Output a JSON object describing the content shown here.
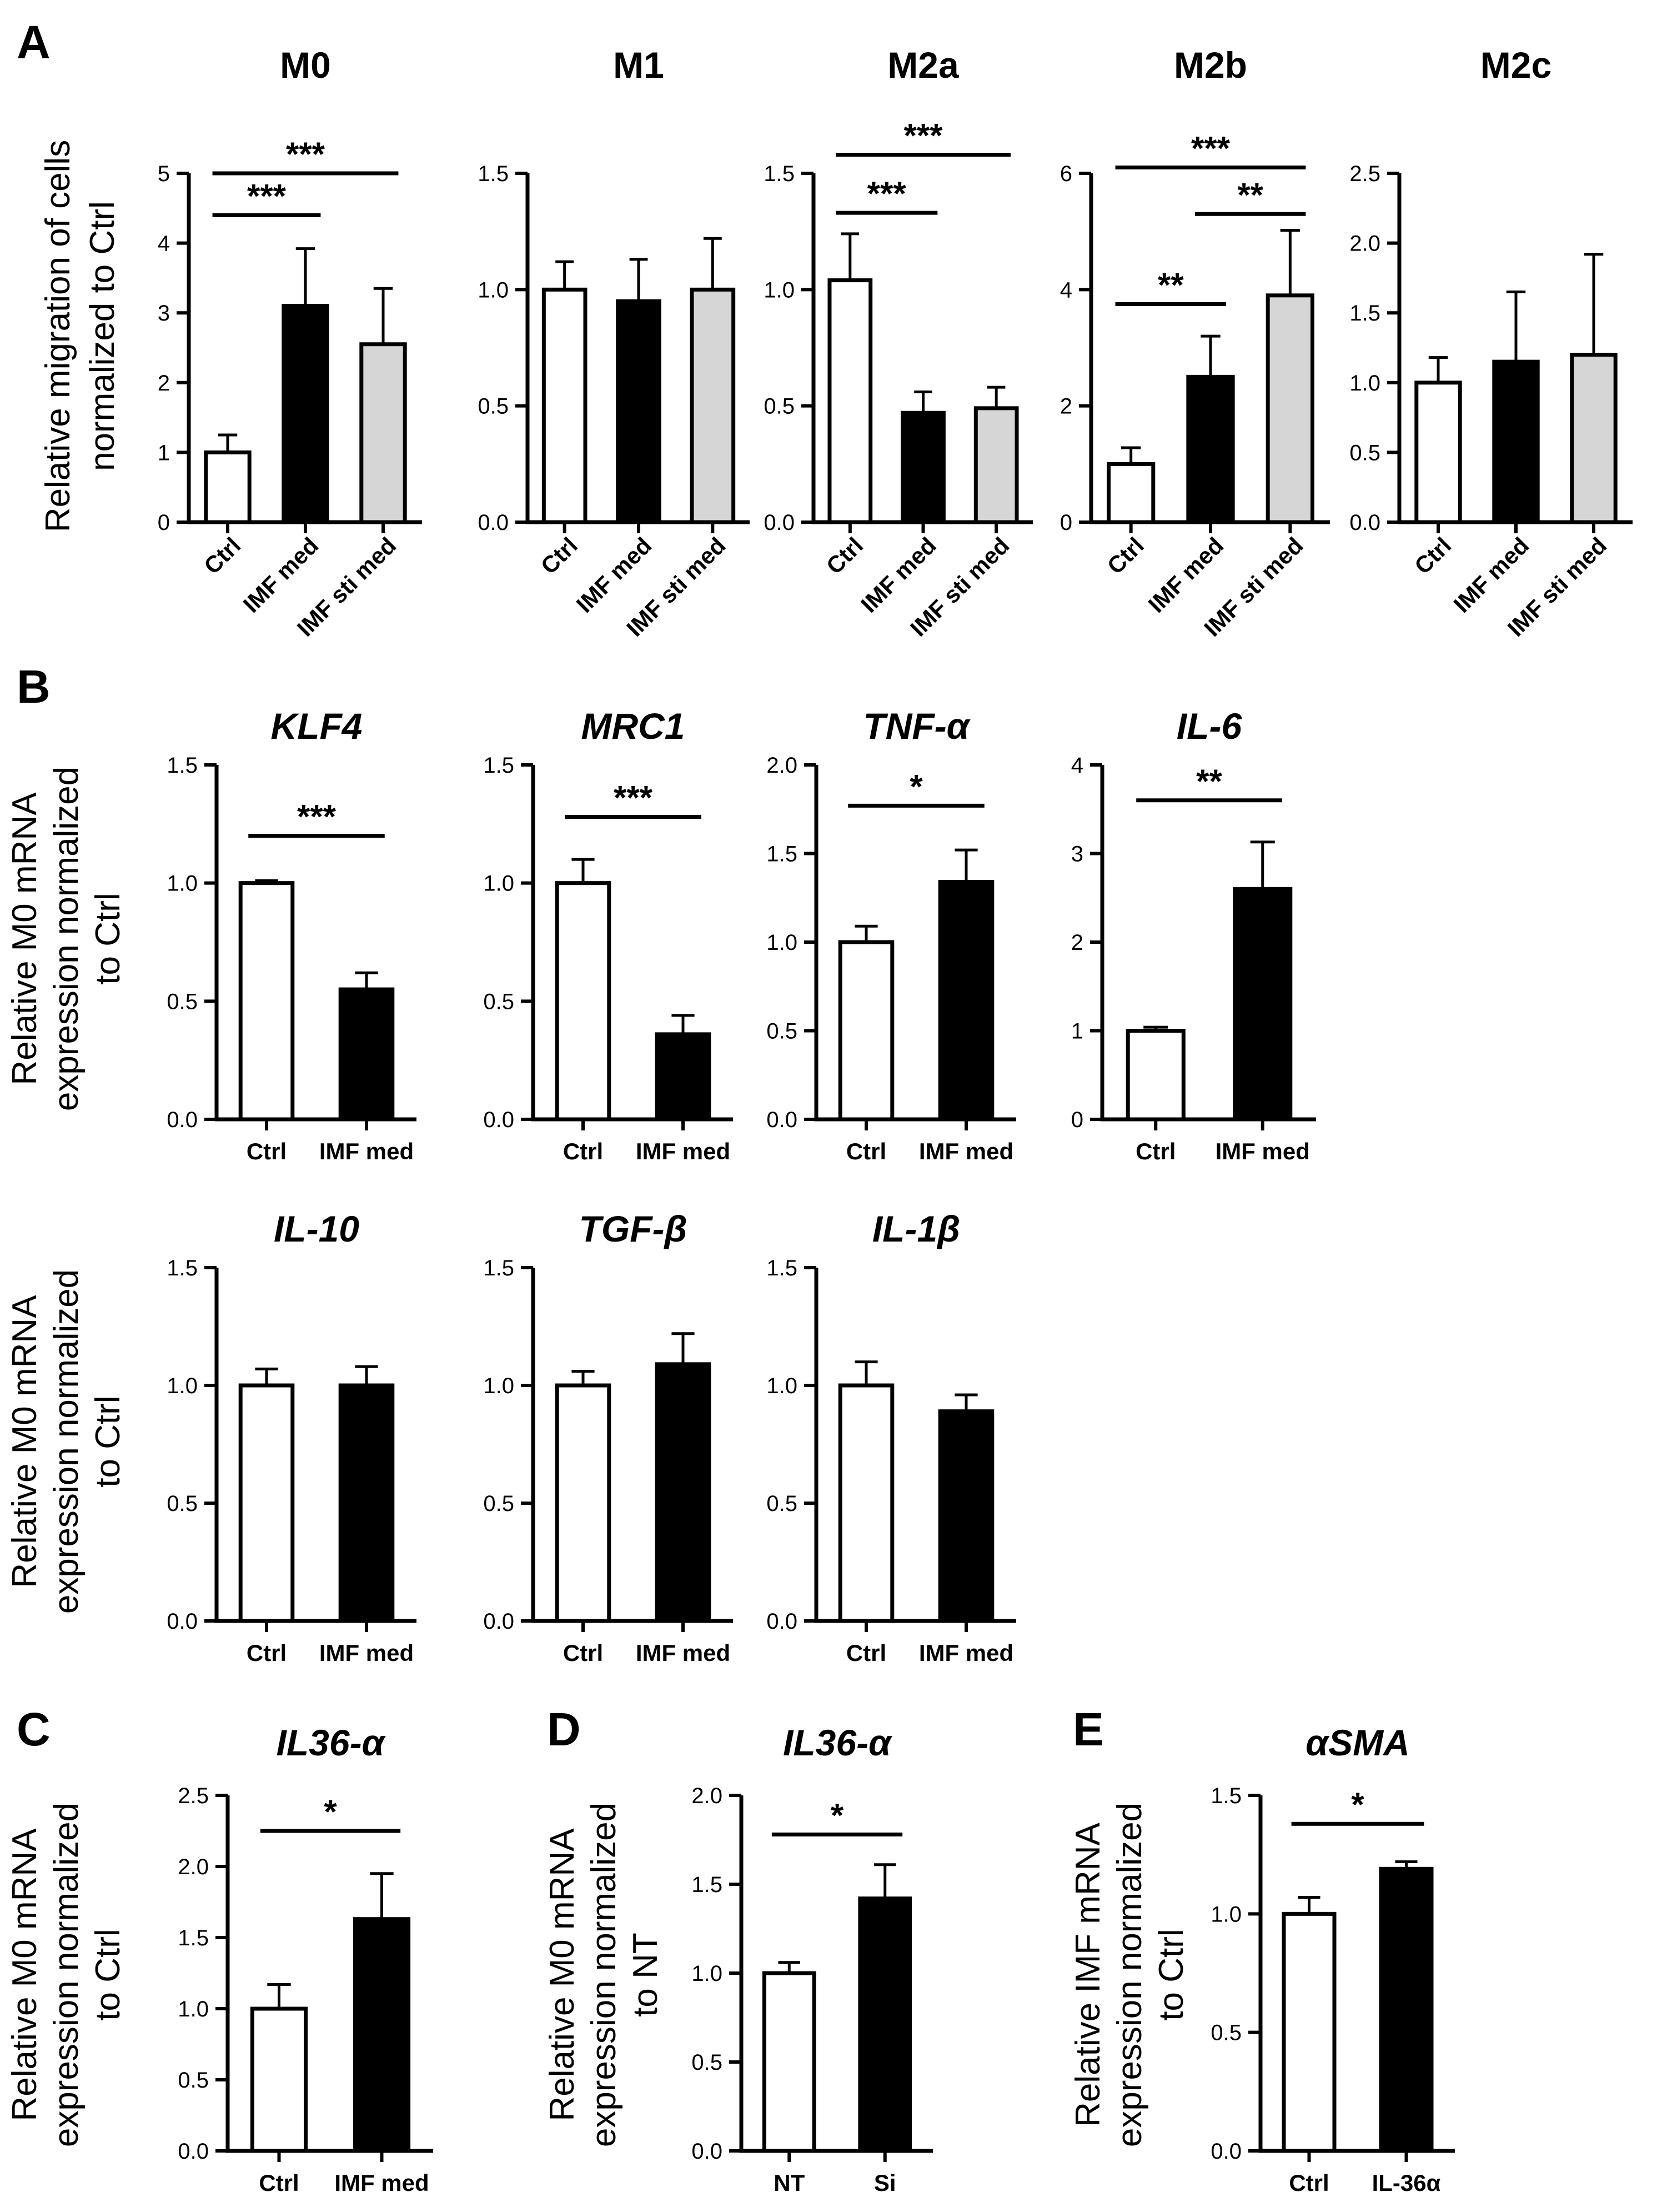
{
  "panel_labels": [
    "A",
    "B",
    "C",
    "D",
    "E"
  ],
  "ylabels": {
    "A": [
      "Relative migration of cells",
      "normalized to Ctrl"
    ],
    "B1": [
      "Relative M0 mRNA",
      "expression normalized",
      "to Ctrl"
    ],
    "B2": [
      "Relative M0 mRNA",
      "expression normalized",
      "to Ctrl"
    ],
    "C": [
      "Relative M0 mRNA",
      "expression normalized",
      "to Ctrl"
    ],
    "D": [
      "Relative M0 mRNA",
      "expression normalized",
      "to NT"
    ],
    "E": [
      "Relative IMF mRNA",
      "expression normalized",
      "to Ctrl"
    ]
  },
  "colors": {
    "ctrl": "#ffffff",
    "imf": "#000000",
    "sti": "#d6d6d6",
    "edge": "#000000"
  },
  "chart_data": [
    {
      "id": "A-M0",
      "type": "bar",
      "title": "M0",
      "italic": false,
      "categories": [
        "Ctrl",
        "IMF med",
        "IMF sti med"
      ],
      "values": [
        1.0,
        3.1,
        2.55
      ],
      "errors": [
        0.25,
        0.82,
        0.8
      ],
      "ylim": [
        0,
        5
      ],
      "yticks": [
        "0",
        "1",
        "2",
        "3",
        "4",
        "5"
      ],
      "rotated": true,
      "sig": [
        {
          "from": 0,
          "to": 1,
          "y": 4.4,
          "label": "***"
        },
        {
          "from": 0,
          "to": 2,
          "y": 5.0,
          "label": "***"
        }
      ]
    },
    {
      "id": "A-M1",
      "type": "bar",
      "title": "M1",
      "italic": false,
      "categories": [
        "Ctrl",
        "IMF med",
        "IMF sti med"
      ],
      "values": [
        1.0,
        0.95,
        1.0
      ],
      "errors": [
        0.12,
        0.18,
        0.22
      ],
      "ylim": [
        0,
        1.5
      ],
      "yticks": [
        "0.0",
        "0.5",
        "1.0",
        "1.5"
      ],
      "rotated": true,
      "sig": []
    },
    {
      "id": "A-M2a",
      "type": "bar",
      "title": "M2a",
      "italic": false,
      "categories": [
        "Ctrl",
        "IMF med",
        "IMF sti med"
      ],
      "values": [
        1.04,
        0.47,
        0.49
      ],
      "errors": [
        0.2,
        0.09,
        0.09
      ],
      "ylim": [
        0,
        1.5
      ],
      "yticks": [
        "0.0",
        "0.5",
        "1.0",
        "1.5"
      ],
      "rotated": true,
      "sig": [
        {
          "from": 0,
          "to": 1,
          "y": 1.33,
          "label": "***"
        },
        {
          "from": 0,
          "to": 2,
          "y": 1.58,
          "label": "***"
        }
      ]
    },
    {
      "id": "A-M2b",
      "type": "bar",
      "title": "M2b",
      "italic": false,
      "categories": [
        "Ctrl",
        "IMF med",
        "IMF sti med"
      ],
      "values": [
        1.0,
        2.5,
        3.9
      ],
      "errors": [
        0.28,
        0.7,
        1.12
      ],
      "ylim": [
        0,
        6
      ],
      "yticks": [
        "0",
        "2",
        "4",
        "6"
      ],
      "rotated": true,
      "sig": [
        {
          "from": 0,
          "to": 1,
          "y": 3.75,
          "label": "**"
        },
        {
          "from": 1,
          "to": 2,
          "y": 5.3,
          "label": "**"
        },
        {
          "from": 0,
          "to": 2,
          "y": 6.1,
          "label": "***"
        }
      ]
    },
    {
      "id": "A-M2c",
      "type": "bar",
      "title": "M2c",
      "italic": false,
      "categories": [
        "Ctrl",
        "IMF med",
        "IMF sti med"
      ],
      "values": [
        1.0,
        1.15,
        1.2
      ],
      "errors": [
        0.18,
        0.5,
        0.72
      ],
      "ylim": [
        0,
        2.5
      ],
      "yticks": [
        "0.0",
        "0.5",
        "1.0",
        "1.5",
        "2.0",
        "2.5"
      ],
      "rotated": true,
      "sig": []
    },
    {
      "id": "B-KLF4",
      "type": "bar",
      "title": "KLF4",
      "italic": true,
      "categories": [
        "Ctrl",
        "IMF med"
      ],
      "values": [
        1.0,
        0.55
      ],
      "errors": [
        0.01,
        0.07
      ],
      "ylim": [
        0,
        1.5
      ],
      "yticks": [
        "0.0",
        "0.5",
        "1.0",
        "1.5"
      ],
      "rotated": false,
      "sig": [
        {
          "from": 0,
          "to": 1,
          "y": 1.2,
          "label": "***"
        }
      ]
    },
    {
      "id": "B-MRC1",
      "type": "bar",
      "title": "MRC1",
      "italic": true,
      "categories": [
        "Ctrl",
        "IMF med"
      ],
      "values": [
        1.0,
        0.36
      ],
      "errors": [
        0.1,
        0.08
      ],
      "ylim": [
        0,
        1.5
      ],
      "yticks": [
        "0.0",
        "0.5",
        "1.0",
        "1.5"
      ],
      "rotated": false,
      "sig": [
        {
          "from": 0,
          "to": 1,
          "y": 1.28,
          "label": "***"
        }
      ]
    },
    {
      "id": "B-TNF",
      "type": "bar",
      "title": "TNF-α",
      "italic": true,
      "categories": [
        "Ctrl",
        "IMF med"
      ],
      "values": [
        1.0,
        1.34
      ],
      "errors": [
        0.09,
        0.18
      ],
      "ylim": [
        0,
        2.0
      ],
      "yticks": [
        "0.0",
        "0.5",
        "1.0",
        "1.5",
        "2.0"
      ],
      "rotated": false,
      "sig": [
        {
          "from": 0,
          "to": 1,
          "y": 1.77,
          "label": "*"
        }
      ]
    },
    {
      "id": "B-IL6",
      "type": "bar",
      "title": "IL-6",
      "italic": true,
      "categories": [
        "Ctrl",
        "IMF med"
      ],
      "values": [
        1.0,
        2.6
      ],
      "errors": [
        0.04,
        0.53
      ],
      "ylim": [
        0,
        4
      ],
      "yticks": [
        "0",
        "1",
        "2",
        "3",
        "4"
      ],
      "rotated": false,
      "sig": [
        {
          "from": 0,
          "to": 1,
          "y": 3.6,
          "label": "**"
        }
      ]
    },
    {
      "id": "B-IL10",
      "type": "bar",
      "title": "IL-10",
      "italic": true,
      "categories": [
        "Ctrl",
        "IMF med"
      ],
      "values": [
        1.0,
        1.0
      ],
      "errors": [
        0.07,
        0.08
      ],
      "ylim": [
        0,
        1.5
      ],
      "yticks": [
        "0.0",
        "0.5",
        "1.0",
        "1.5"
      ],
      "rotated": false,
      "sig": []
    },
    {
      "id": "B-TGFb",
      "type": "bar",
      "title": "TGF-β",
      "italic": true,
      "categories": [
        "Ctrl",
        "IMF med"
      ],
      "values": [
        1.0,
        1.09
      ],
      "errors": [
        0.06,
        0.13
      ],
      "ylim": [
        0,
        1.5
      ],
      "yticks": [
        "0.0",
        "0.5",
        "1.0",
        "1.5"
      ],
      "rotated": false,
      "sig": []
    },
    {
      "id": "B-IL1b",
      "type": "bar",
      "title": "IL-1β",
      "italic": true,
      "categories": [
        "Ctrl",
        "IMF med"
      ],
      "values": [
        1.0,
        0.89
      ],
      "errors": [
        0.1,
        0.07
      ],
      "ylim": [
        0,
        1.5
      ],
      "yticks": [
        "0.0",
        "0.5",
        "1.0",
        "1.5"
      ],
      "rotated": false,
      "sig": []
    },
    {
      "id": "C-IL36a",
      "type": "bar",
      "title": "IL36-α",
      "italic": true,
      "categories": [
        "Ctrl",
        "IMF med"
      ],
      "values": [
        1.0,
        1.63
      ],
      "errors": [
        0.17,
        0.32
      ],
      "ylim": [
        0,
        2.5
      ],
      "yticks": [
        "0.0",
        "0.5",
        "1.0",
        "1.5",
        "2.0",
        "2.5"
      ],
      "rotated": false,
      "sig": [
        {
          "from": 0,
          "to": 1,
          "y": 2.25,
          "label": "*"
        }
      ]
    },
    {
      "id": "D-IL36a",
      "type": "bar",
      "title": "IL36-α",
      "italic": true,
      "categories": [
        "NT",
        "Si"
      ],
      "values": [
        1.0,
        1.42
      ],
      "errors": [
        0.06,
        0.19
      ],
      "ylim": [
        0,
        2.0
      ],
      "yticks": [
        "0.0",
        "0.5",
        "1.0",
        "1.5",
        "2.0"
      ],
      "rotated": false,
      "sig": [
        {
          "from": 0,
          "to": 1,
          "y": 1.78,
          "label": "*"
        }
      ]
    },
    {
      "id": "E-aSMA",
      "type": "bar",
      "title": "αSMA",
      "italic": true,
      "categories": [
        "Ctrl",
        "IL-36α"
      ],
      "values": [
        1.0,
        1.19
      ],
      "errors": [
        0.07,
        0.03
      ],
      "ylim": [
        0,
        1.5
      ],
      "yticks": [
        "0.0",
        "0.5",
        "1.0",
        "1.5"
      ],
      "rotated": false,
      "sig": [
        {
          "from": 0,
          "to": 1,
          "y": 1.38,
          "label": "*"
        }
      ]
    }
  ]
}
